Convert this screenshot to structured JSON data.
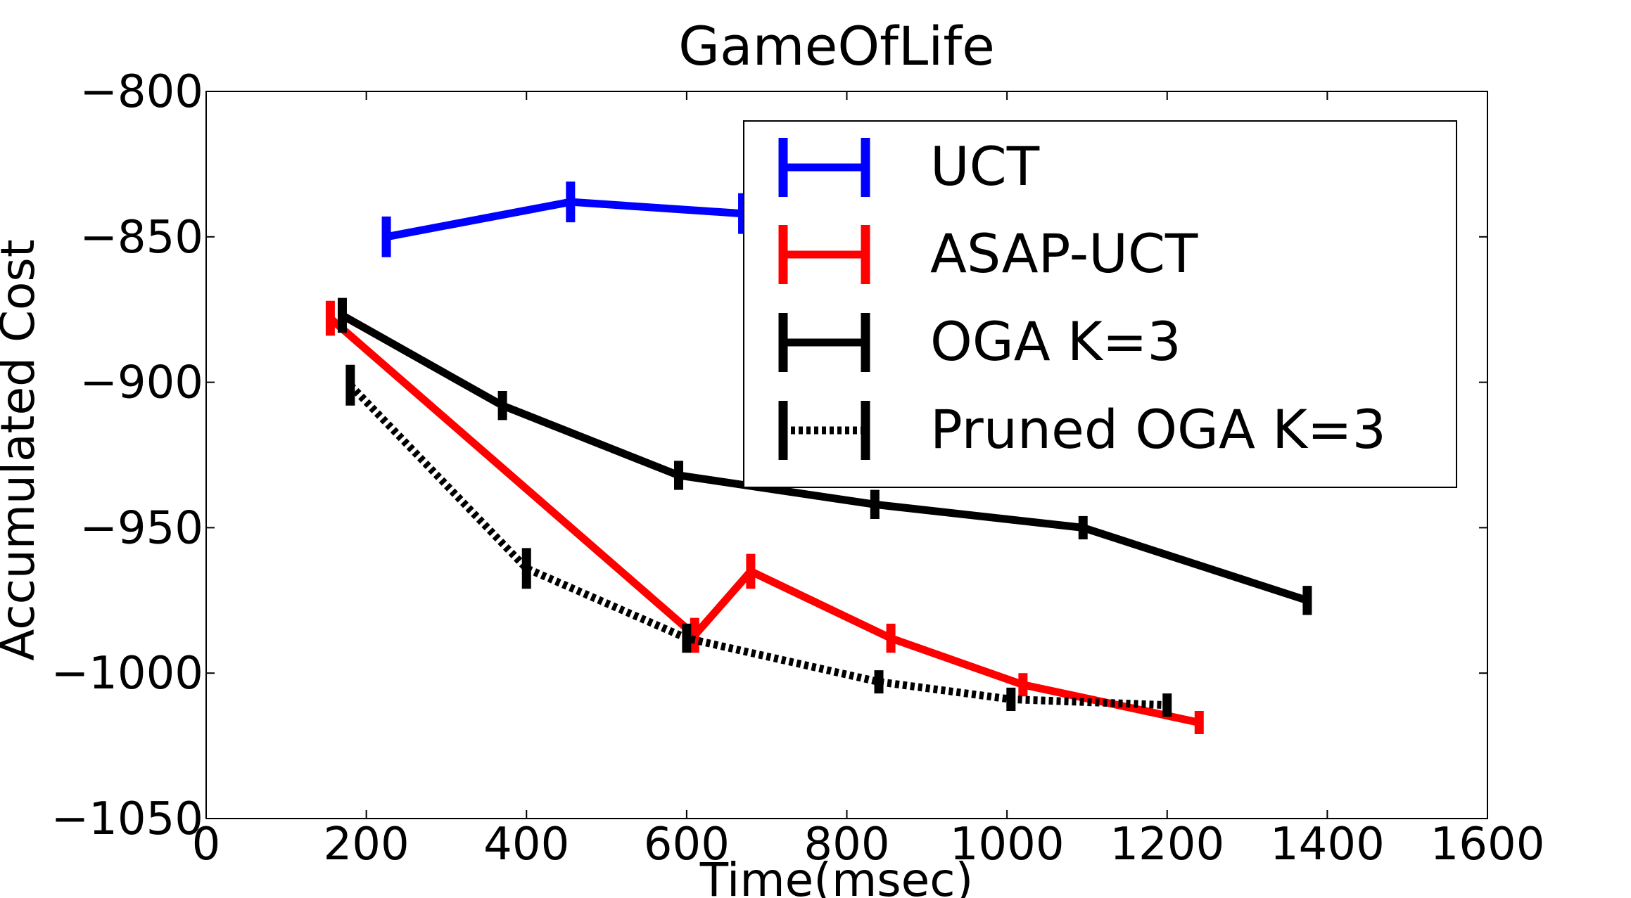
{
  "chart_data": {
    "type": "line",
    "title": "GameOfLife",
    "xlabel": "Time(msec)",
    "ylabel": "Accumulated Cost",
    "xlim": [
      0,
      1600
    ],
    "ylim": [
      -1050,
      -800
    ],
    "xticks": [
      0,
      200,
      400,
      600,
      800,
      1000,
      1200,
      1400,
      1600
    ],
    "yticks": [
      -800,
      -850,
      -900,
      -950,
      -1000,
      -1050
    ],
    "xtick_labels": [
      "0",
      "200",
      "400",
      "600",
      "800",
      "1000",
      "1200",
      "1400",
      "1600"
    ],
    "ytick_labels": [
      "−800",
      "−850",
      "−900",
      "−950",
      "−1000",
      "−1050"
    ],
    "grid": false,
    "legend_position": "top-right",
    "series": [
      {
        "name": "UCT",
        "color": "#0000ff",
        "dash": "solid",
        "points": [
          [
            225,
            -850
          ],
          [
            455,
            -838
          ],
          [
            670,
            -842
          ]
        ],
        "errors": [
          7,
          7,
          7
        ]
      },
      {
        "name": "ASAP-UCT",
        "color": "#ff0000",
        "dash": "solid",
        "points": [
          [
            155,
            -878
          ],
          [
            610,
            -987
          ],
          [
            680,
            -965
          ],
          [
            855,
            -988
          ],
          [
            1020,
            -1004
          ],
          [
            1240,
            -1017
          ]
        ],
        "errors": [
          6,
          6,
          6,
          5,
          4,
          4
        ]
      },
      {
        "name": "OGA K=3",
        "color": "#000000",
        "dash": "solid",
        "points": [
          [
            170,
            -877
          ],
          [
            370,
            -908
          ],
          [
            590,
            -932
          ],
          [
            835,
            -942
          ],
          [
            1095,
            -950
          ],
          [
            1375,
            -975
          ]
        ],
        "errors": [
          6,
          5,
          5,
          5,
          4,
          5
        ]
      },
      {
        "name": "Pruned OGA K=3",
        "color": "#000000",
        "dash": "dotted",
        "points": [
          [
            180,
            -901
          ],
          [
            400,
            -964
          ],
          [
            600,
            -988
          ],
          [
            840,
            -1003
          ],
          [
            1005,
            -1009
          ],
          [
            1200,
            -1011
          ]
        ],
        "errors": [
          7,
          7,
          5,
          4,
          4,
          4
        ]
      }
    ]
  }
}
